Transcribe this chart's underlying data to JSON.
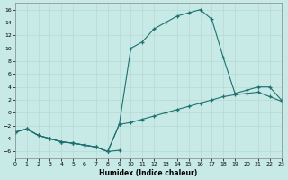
{
  "bg_color": "#c8eae6",
  "line_color": "#1e7070",
  "grid_color": "#b8d8d5",
  "xlabel": "Humidex (Indice chaleur)",
  "xlim": [
    0,
    23
  ],
  "ylim": [
    -7,
    17
  ],
  "xticks": [
    0,
    1,
    2,
    3,
    4,
    5,
    6,
    7,
    8,
    9,
    10,
    11,
    12,
    13,
    14,
    15,
    16,
    17,
    18,
    19,
    20,
    21,
    22,
    23
  ],
  "yticks": [
    -6,
    -4,
    -2,
    0,
    2,
    4,
    6,
    8,
    10,
    12,
    14,
    16
  ],
  "series": [
    {
      "x": [
        0,
        1,
        2,
        3,
        4,
        5,
        6,
        7,
        8,
        9
      ],
      "y": [
        -3,
        -2.5,
        -3.5,
        -4.0,
        -4.5,
        -4.7,
        -5.0,
        -5.3,
        -6.0,
        -5.8
      ]
    },
    {
      "x": [
        0,
        1,
        2,
        3,
        4,
        5,
        6,
        7,
        8,
        9,
        10,
        11,
        12,
        13,
        14,
        15,
        16,
        17,
        18,
        19,
        20,
        21,
        22,
        23
      ],
      "y": [
        -3,
        -2.5,
        -3.5,
        -4.0,
        -4.5,
        -4.7,
        -5.0,
        -5.3,
        -6.0,
        -1.8,
        -1.5,
        -1.0,
        -0.5,
        0.0,
        0.5,
        1.0,
        1.5,
        2.0,
        2.5,
        2.8,
        3.0,
        3.2,
        2.5,
        1.8
      ]
    },
    {
      "x": [
        0,
        1,
        2,
        3,
        4,
        5,
        6,
        7,
        8,
        9,
        10,
        11,
        12,
        13,
        14,
        15,
        16,
        17,
        18,
        19,
        20,
        21,
        22,
        23
      ],
      "y": [
        -3,
        -2.5,
        -3.5,
        -4.0,
        -4.5,
        -4.7,
        -5.0,
        -5.3,
        -6.0,
        -1.8,
        10.0,
        11.0,
        13.0,
        14.0,
        15.0,
        15.5,
        16.0,
        14.5,
        8.5,
        3.0,
        3.5,
        4.0,
        4.0,
        2.0
      ]
    }
  ]
}
